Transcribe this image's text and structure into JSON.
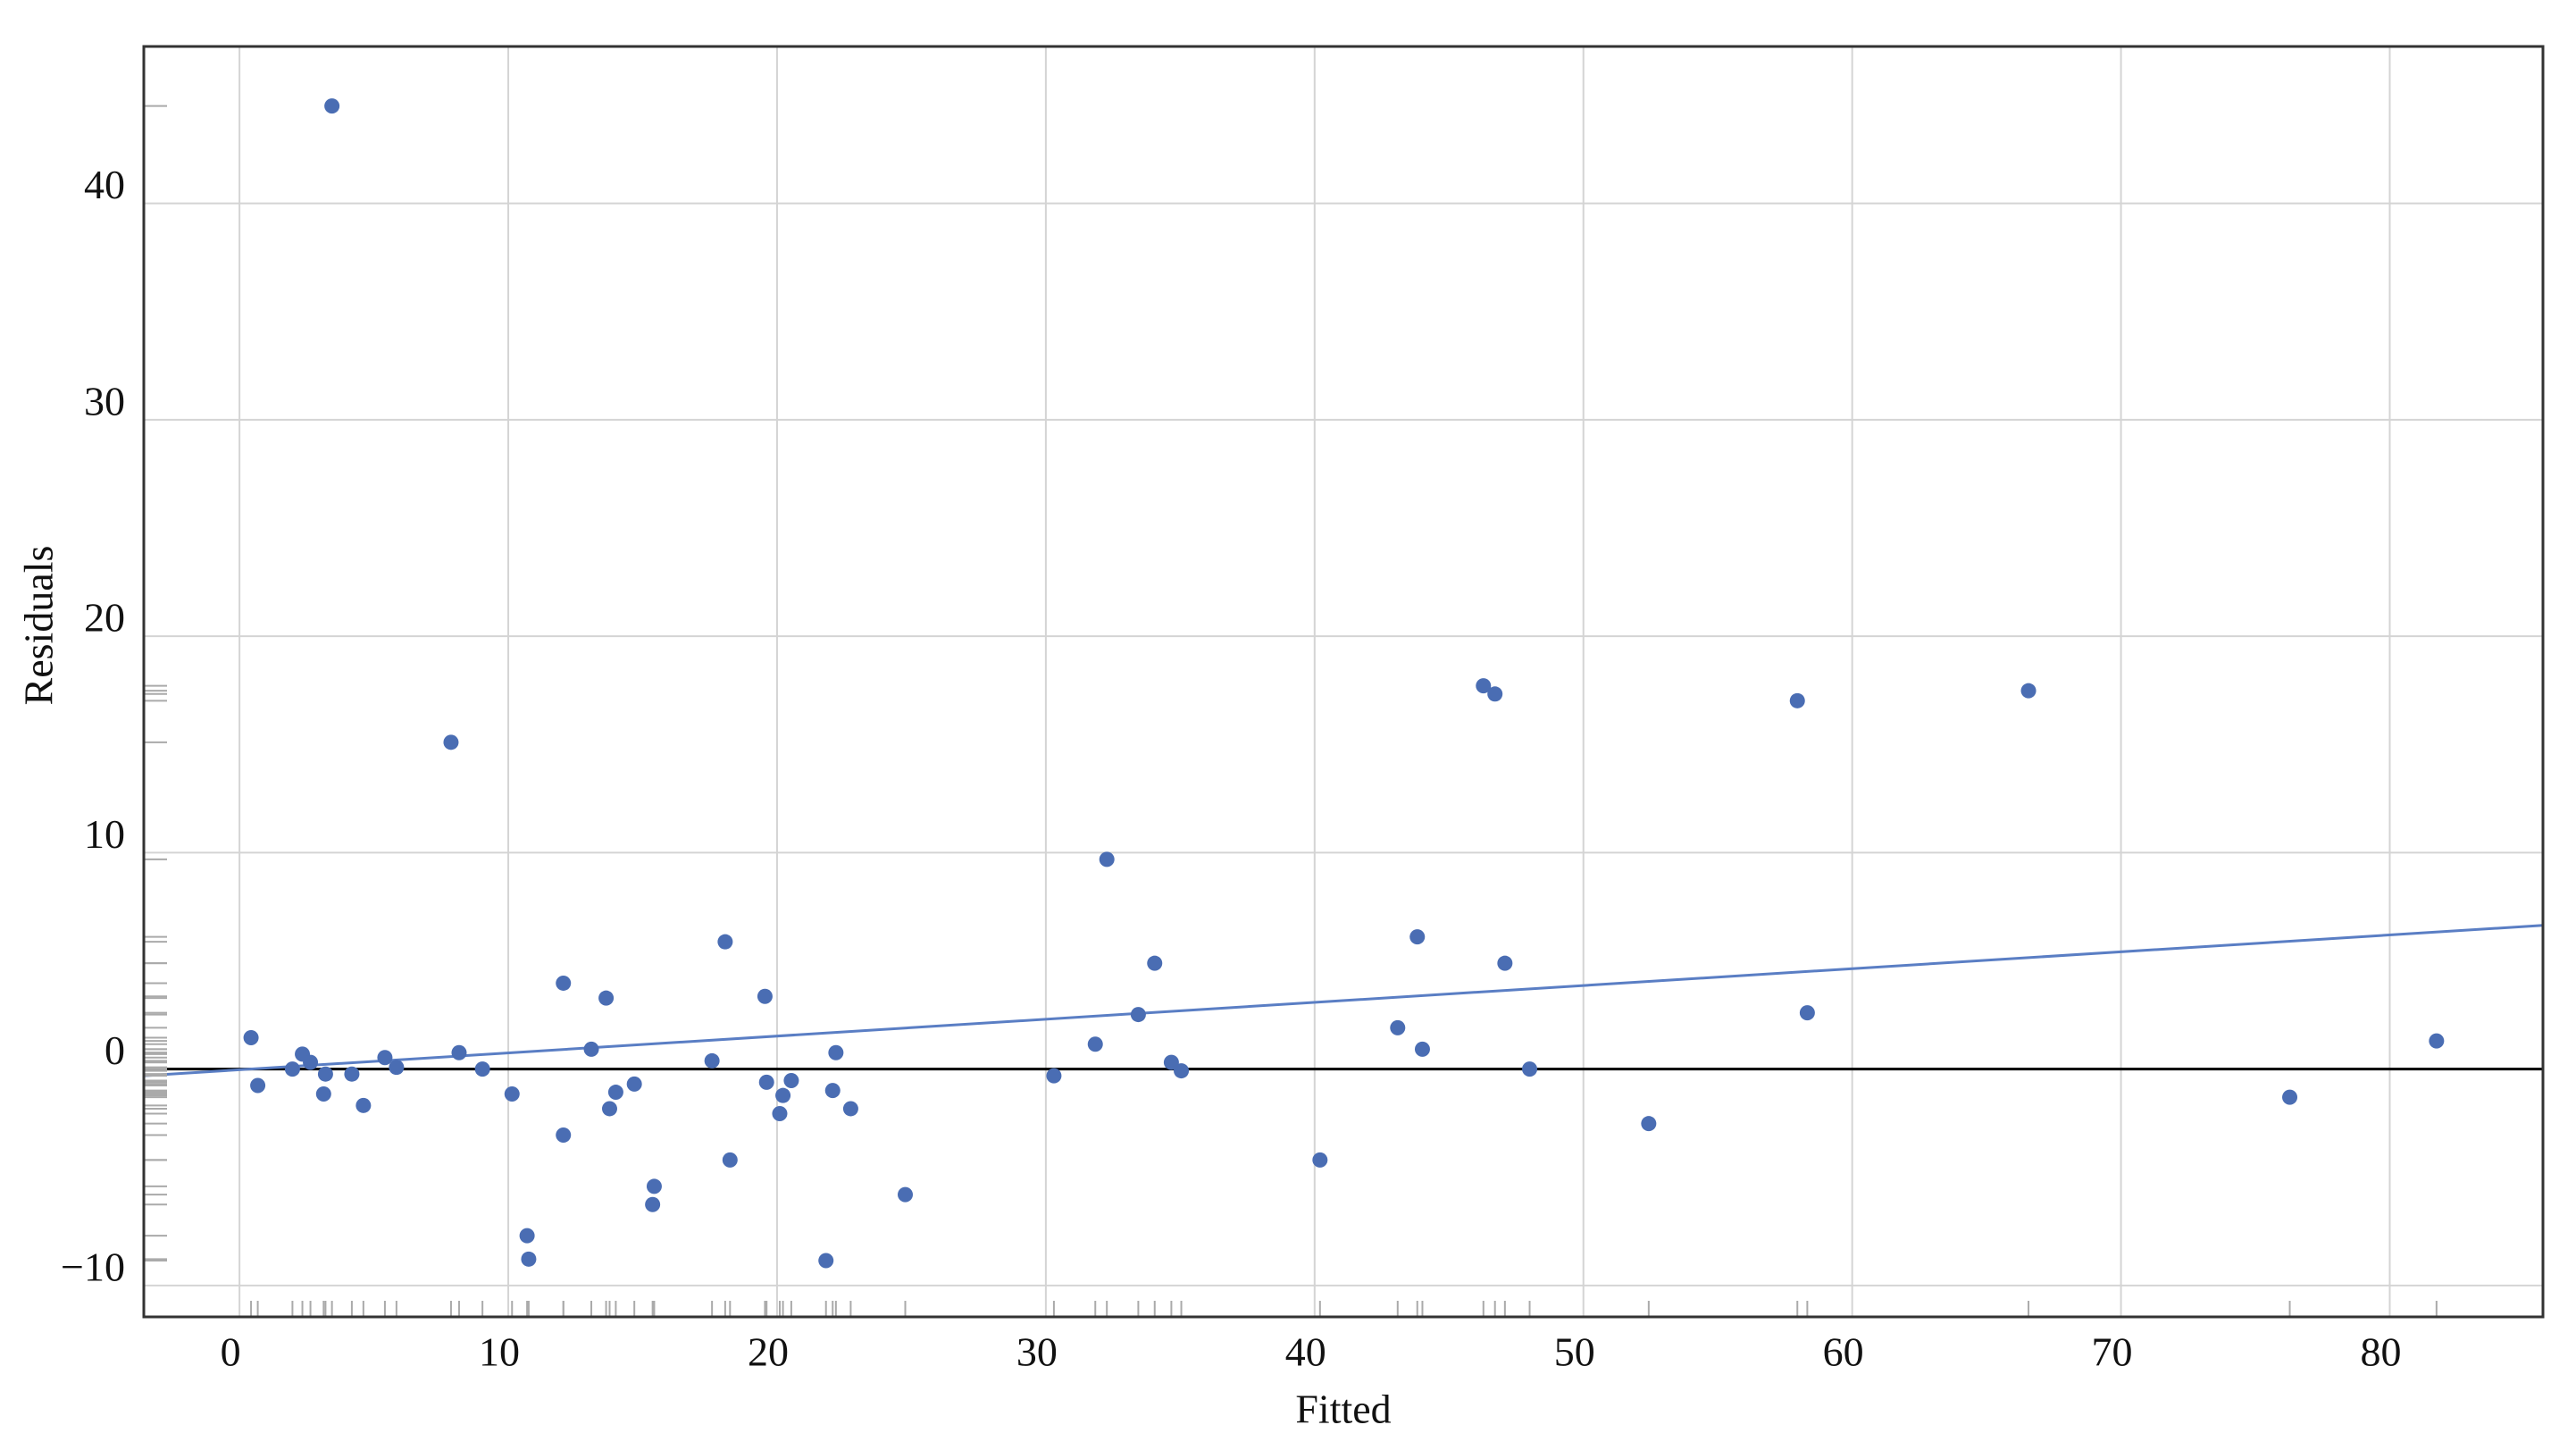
{
  "chart_data": {
    "type": "scatter",
    "x_label": "Fitted",
    "y_label": "Residuals",
    "series": [
      {
        "color": "#4a6db3",
        "x": [
          3.44,
          7.87,
          0.43,
          0.68,
          1.97,
          2.34,
          2.64,
          3.2,
          3.13,
          4.18,
          4.61,
          5.41,
          5.84,
          8.17,
          9.04,
          10.14,
          10.7,
          10.76,
          12.05,
          12.05,
          13.09,
          13.64,
          13.77,
          14.0,
          14.69,
          15.43,
          15.37,
          17.58,
          18.07,
          18.25,
          19.55,
          19.61,
          20.22,
          20.1,
          20.53,
          21.82,
          22.07,
          22.19,
          22.74,
          24.77,
          30.3,
          31.84,
          32.27,
          33.44,
          34.05,
          34.67,
          35.04,
          40.2,
          43.09,
          43.82,
          44.01,
          46.28,
          46.71,
          47.08,
          48.0,
          52.43,
          57.96,
          58.33,
          66.56,
          76.28,
          81.74
        ],
        "values": [
          44.5,
          15.1,
          1.45,
          -0.76,
          0,
          0.69,
          0.31,
          -0.23,
          -1.15,
          -0.23,
          -1.68,
          0.53,
          0.08,
          0.76,
          0,
          -1.15,
          -7.7,
          -8.78,
          3.97,
          -3.05,
          0.92,
          3.28,
          -1.83,
          -1.07,
          -0.69,
          -5.42,
          -6.26,
          0.38,
          5.88,
          -4.2,
          3.36,
          -0.61,
          -1.22,
          -2.06,
          -0.53,
          -8.85,
          -0.99,
          0.76,
          -1.83,
          -5.8,
          -0.31,
          1.15,
          9.69,
          2.52,
          4.89,
          0.31,
          -0.08,
          -4.2,
          1.91,
          6.11,
          0.92,
          17.71,
          17.33,
          4.89,
          0,
          -2.52,
          17.02,
          2.6,
          17.48,
          -1.3,
          1.3
        ]
      }
    ],
    "fit_line": {
      "x": [
        -3.56,
        85.7
      ],
      "values": [
        -0.31,
        6.64
      ],
      "color": "#5a7ec4"
    },
    "reference_line": {
      "y": 0,
      "color": "#000000"
    },
    "rug": true,
    "xlim": [
      -3.56,
      85.7
    ],
    "xticks": [
      0,
      10,
      20,
      30,
      40,
      50,
      60,
      70,
      80
    ],
    "ylim": [
      -11.45,
      47.25
    ],
    "yticks": [
      {
        "value": -10,
        "label": "−10"
      },
      0,
      10,
      20,
      30,
      40
    ],
    "grid": true
  }
}
